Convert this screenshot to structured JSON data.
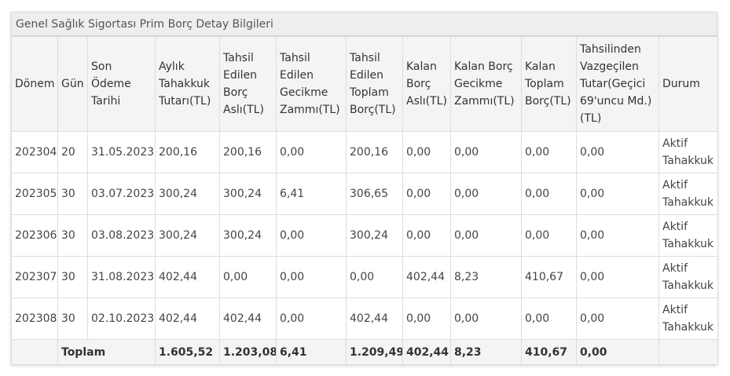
{
  "panel": {
    "title": "Genel Sağlık Sigortası Prim Borç Detay Bilgileri"
  },
  "table": {
    "headers": [
      "Dönem",
      "Gün",
      "Son Ödeme Tarihi",
      "Aylık Tahakkuk Tutarı(TL)",
      "Tahsil Edilen Borç Aslı(TL)",
      "Tahsil Edilen Gecikme Zammı(TL)",
      "Tahsil Edilen Toplam Borç(TL)",
      "Kalan Borç Aslı(TL)",
      "Kalan Borç Gecikme Zammı(TL)",
      "Kalan Toplam Borç(TL)",
      "Tahsilinden Vazgeçilen Tutar(Geçici 69'uncu Md.)(TL)",
      "Durum"
    ],
    "rows": [
      [
        "202304",
        "20",
        "31.05.2023",
        "200,16",
        "200,16",
        "0,00",
        "200,16",
        "0,00",
        "0,00",
        "0,00",
        "0,00",
        "Aktif Tahakkuk"
      ],
      [
        "202305",
        "30",
        "03.07.2023",
        "300,24",
        "300,24",
        "6,41",
        "306,65",
        "0,00",
        "0,00",
        "0,00",
        "0,00",
        "Aktif Tahakkuk"
      ],
      [
        "202306",
        "30",
        "03.08.2023",
        "300,24",
        "300,24",
        "0,00",
        "300,24",
        "0,00",
        "0,00",
        "0,00",
        "0,00",
        "Aktif Tahakkuk"
      ],
      [
        "202307",
        "30",
        "31.08.2023",
        "402,44",
        "0,00",
        "0,00",
        "0,00",
        "402,44",
        "8,23",
        "410,67",
        "0,00",
        "Aktif Tahakkuk"
      ],
      [
        "202308",
        "30",
        "02.10.2023",
        "402,44",
        "402,44",
        "0,00",
        "402,44",
        "0,00",
        "0,00",
        "0,00",
        "0,00",
        "Aktif Tahakkuk"
      ]
    ],
    "footer": {
      "label": "Toplam",
      "values": [
        "1.605,52",
        "1.203,08",
        "6,41",
        "1.209,49",
        "402,44",
        "8,23",
        "410,67",
        "0,00"
      ]
    }
  }
}
